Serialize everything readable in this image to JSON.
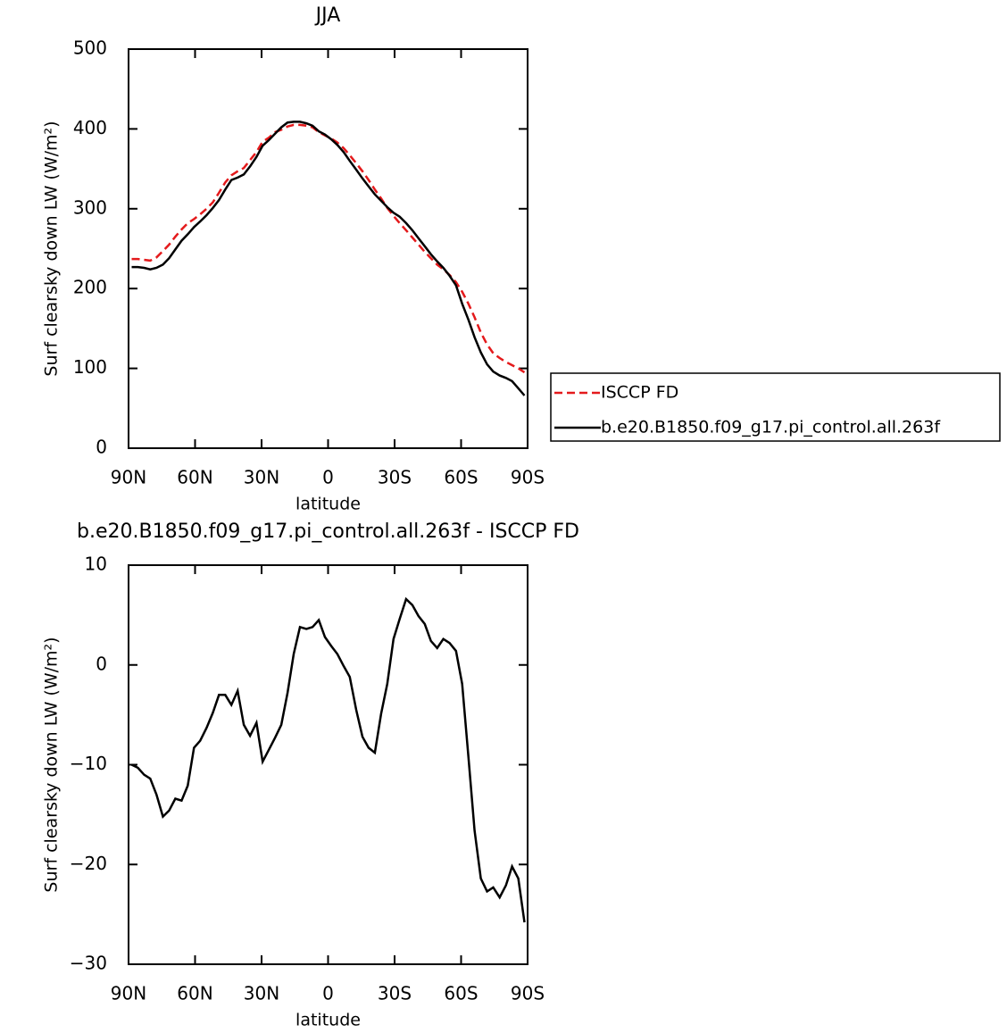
{
  "chart_data": [
    {
      "type": "line",
      "title": "JJA",
      "x_label": "latitude",
      "y_label": "Surf clearsky down LW (W/m²)",
      "xlim": [
        90,
        -90
      ],
      "xticks": [
        {
          "value": 90,
          "label": "90N"
        },
        {
          "value": 60,
          "label": "60N"
        },
        {
          "value": 30,
          "label": "30N"
        },
        0,
        {
          "value": -30,
          "label": "30S"
        },
        {
          "value": -60,
          "label": "60S"
        },
        {
          "value": -90,
          "label": "90S"
        }
      ],
      "ylim": [
        0,
        500
      ],
      "yticks": [
        0,
        100,
        200,
        300,
        400,
        500
      ],
      "legend": "right",
      "x": [
        88.6,
        85.8,
        83.0,
        80.2,
        77.4,
        74.5,
        71.7,
        68.9,
        66.1,
        63.3,
        60.5,
        57.7,
        54.8,
        52.0,
        49.2,
        46.4,
        43.6,
        40.8,
        38.0,
        35.2,
        32.3,
        29.5,
        26.7,
        23.9,
        21.1,
        18.3,
        15.5,
        12.7,
        9.8,
        7.0,
        4.2,
        1.4,
        -1.4,
        -4.2,
        -7.0,
        -9.8,
        -12.7,
        -15.5,
        -18.3,
        -21.1,
        -23.9,
        -26.7,
        -29.5,
        -32.3,
        -35.2,
        -38.0,
        -40.8,
        -43.6,
        -46.4,
        -49.2,
        -52.0,
        -54.8,
        -57.7,
        -60.5,
        -63.3,
        -66.1,
        -68.9,
        -71.7,
        -74.5,
        -77.4,
        -80.2,
        -83.0,
        -85.8,
        -88.6
      ],
      "series": [
        {
          "name": "ISCCP FD",
          "color": "#e41a1c",
          "dash": "dashed",
          "values": [
            237,
            237,
            236,
            235,
            239,
            247,
            255,
            265,
            274,
            282,
            287,
            293,
            300,
            308,
            320,
            333,
            342,
            347,
            351,
            361,
            371,
            384,
            389,
            396,
            399,
            403,
            405,
            405,
            404,
            402,
            396,
            392,
            388,
            383,
            376,
            367,
            357,
            347,
            336,
            324,
            313,
            301,
            291,
            282,
            273,
            264,
            255,
            246,
            238,
            230,
            224,
            217,
            208,
            196,
            181,
            164,
            145,
            130,
            119,
            113,
            108,
            104,
            100,
            95
          ]
        },
        {
          "name": "b.e20.B1850.f09_g17.pi_control.all.263f",
          "color": "#000000",
          "dash": "solid",
          "values": [
            227,
            227,
            226,
            224,
            226,
            230,
            238,
            249,
            260,
            268,
            277,
            284,
            292,
            301,
            311,
            324,
            336,
            339,
            343,
            353,
            365,
            379,
            386,
            394,
            402,
            408,
            409,
            409,
            407,
            404,
            397,
            393,
            387,
            380,
            371,
            360,
            349,
            338,
            328,
            318,
            310,
            302,
            295,
            290,
            282,
            273,
            263,
            253,
            243,
            234,
            226,
            216,
            204,
            181,
            161,
            139,
            120,
            105,
            96,
            91,
            88,
            84,
            75,
            66
          ]
        }
      ]
    },
    {
      "type": "line",
      "title": "b.e20.B1850.f09_g17.pi_control.all.263f - ISCCP FD",
      "x_label": "latitude",
      "y_label": "Surf clearsky down LW (W/m²)",
      "xlim": [
        90,
        -90
      ],
      "xticks": [
        {
          "value": 90,
          "label": "90N"
        },
        {
          "value": 60,
          "label": "60N"
        },
        {
          "value": 30,
          "label": "30N"
        },
        0,
        {
          "value": -30,
          "label": "30S"
        },
        {
          "value": -60,
          "label": "60S"
        },
        {
          "value": -90,
          "label": "90S"
        }
      ],
      "ylim": [
        -30,
        10
      ],
      "yticks": [
        {
          "value": -30,
          "label": "−30"
        },
        {
          "value": -20,
          "label": "−20"
        },
        {
          "value": -10,
          "label": "−10"
        },
        0,
        10
      ],
      "x": [
        88.6,
        85.8,
        83.0,
        80.2,
        77.4,
        74.5,
        71.7,
        68.9,
        66.1,
        63.3,
        60.5,
        57.7,
        54.8,
        52.0,
        49.2,
        46.4,
        43.6,
        40.8,
        38.0,
        35.2,
        32.3,
        29.5,
        26.7,
        23.9,
        21.1,
        18.3,
        15.5,
        12.7,
        9.8,
        7.0,
        4.2,
        1.4,
        -1.4,
        -4.2,
        -7.0,
        -9.8,
        -12.7,
        -15.5,
        -18.3,
        -21.1,
        -23.9,
        -26.7,
        -29.5,
        -32.3,
        -35.2,
        -38.0,
        -40.8,
        -43.6,
        -46.4,
        -49.2,
        -52.0,
        -54.8,
        -57.7,
        -60.5,
        -63.3,
        -66.1,
        -68.9,
        -71.7,
        -74.5,
        -77.4,
        -80.2,
        -83.0,
        -85.8,
        -88.6
      ],
      "series": [
        {
          "color": "#000000",
          "dash": "solid",
          "values": [
            -10.0,
            -10.3,
            -11.0,
            -11.4,
            -13.0,
            -15.2,
            -14.6,
            -13.4,
            -13.6,
            -12.1,
            -8.3,
            -7.6,
            -6.3,
            -4.8,
            -3.0,
            -3.0,
            -4.0,
            -2.6,
            -6.0,
            -7.1,
            -5.8,
            -9.7,
            -8.5,
            -7.3,
            -6.0,
            -2.8,
            1.1,
            3.8,
            3.6,
            3.8,
            4.5,
            2.8,
            1.9,
            1.1,
            -0.1,
            -1.2,
            -4.5,
            -7.2,
            -8.3,
            -8.8,
            -4.9,
            -1.9,
            2.6,
            4.6,
            6.6,
            6.0,
            4.9,
            4.1,
            2.4,
            1.7,
            2.6,
            2.2,
            1.4,
            -1.9,
            -9.2,
            -16.6,
            -21.4,
            -22.7,
            -22.3,
            -23.3,
            -22.1,
            -20.2,
            -21.4,
            -25.8
          ]
        }
      ]
    }
  ]
}
